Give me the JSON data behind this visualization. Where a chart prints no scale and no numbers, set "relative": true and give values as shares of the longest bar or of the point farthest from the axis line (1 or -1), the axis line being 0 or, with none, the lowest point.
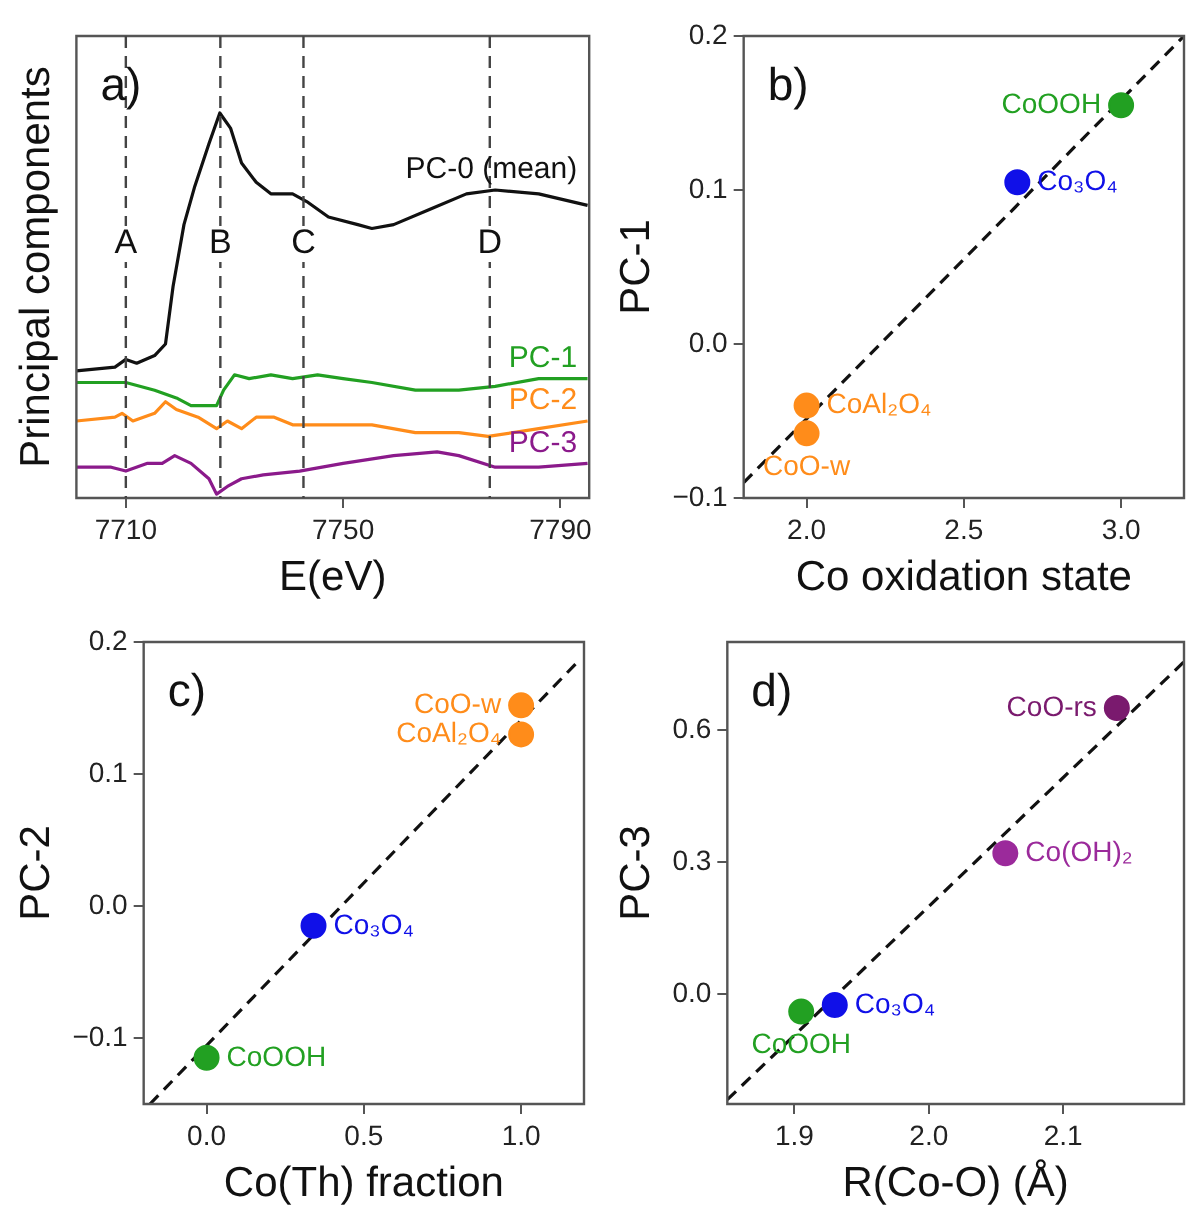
{
  "chart_data": [
    {
      "type": "line",
      "relative": true,
      "xlabel": "E(eV)",
      "ylabel": "Principal components",
      "tick_labels": "x",
      "annotations": [
        "a)"
      ],
      "xlim": [
        7700.9,
        7795.3
      ],
      "xticks": [
        7710,
        7750,
        7790
      ],
      "series": [
        {
          "name": "PC-0 (mean)",
          "color": "#111111",
          "x": [
            7700.9,
            7708,
            7710,
            7712,
            7715.3,
            7717.3,
            7718.7,
            7720.7,
            7722.7,
            7725.3,
            7727.3,
            7729.3,
            7731.3,
            7734,
            7736.7,
            7740.7,
            7743.3,
            7747.3,
            7752.7,
            7755.3,
            7759.3,
            7766,
            7772.7,
            7778,
            7786,
            7795
          ],
          "values": [
            0.33,
            0.34,
            0.36,
            0.35,
            0.37,
            0.4,
            0.55,
            0.71,
            0.81,
            0.92,
            1,
            0.96,
            0.87,
            0.82,
            0.79,
            0.79,
            0.77,
            0.73,
            0.71,
            0.7,
            0.71,
            0.75,
            0.79,
            0.8,
            0.79,
            0.76
          ]
        },
        {
          "name": "PC-1",
          "color": "#22a022",
          "x": [
            7700.9,
            7710,
            7715.3,
            7719.3,
            7722,
            7724.7,
            7726.7,
            7728,
            7730,
            7732.7,
            7736.7,
            7740.7,
            7745.3,
            7750,
            7755.3,
            7763.3,
            7771.3,
            7778,
            7786,
            7795
          ],
          "values": [
            0.3,
            0.3,
            0.28,
            0.26,
            0.24,
            0.24,
            0.24,
            0.28,
            0.32,
            0.31,
            0.32,
            0.31,
            0.32,
            0.31,
            0.3,
            0.28,
            0.28,
            0.29,
            0.31,
            0.31
          ]
        },
        {
          "name": "PC-2",
          "color": "#ff8c1a",
          "x": [
            7700.9,
            7708,
            7709.3,
            7711.3,
            7715.3,
            7717.3,
            7719.3,
            7723.3,
            7726.7,
            7728.7,
            7731.3,
            7734,
            7737.3,
            7740.7,
            7747.3,
            7755.3,
            7763.3,
            7771.3,
            7776.7,
            7786,
            7795
          ],
          "values": [
            0.2,
            0.21,
            0.22,
            0.2,
            0.22,
            0.25,
            0.23,
            0.21,
            0.18,
            0.2,
            0.18,
            0.21,
            0.21,
            0.19,
            0.19,
            0.19,
            0.17,
            0.17,
            0.16,
            0.18,
            0.2
          ]
        },
        {
          "name": "PC-3",
          "color": "#8b1a8b",
          "x": [
            7700.9,
            7707.3,
            7710,
            7714,
            7716.7,
            7719,
            7722,
            7725.3,
            7726.7,
            7728.7,
            7731.3,
            7735.3,
            7742,
            7750,
            7759.3,
            7767.3,
            7771.3,
            7778,
            7786,
            7795
          ],
          "values": [
            0.08,
            0.08,
            0.07,
            0.09,
            0.09,
            0.11,
            0.09,
            0.05,
            0.01,
            0.03,
            0.05,
            0.06,
            0.07,
            0.09,
            0.11,
            0.12,
            0.11,
            0.08,
            0.08,
            0.09
          ]
        }
      ],
      "ref_lines": [
        {
          "axis": "x",
          "value": 7710,
          "label": "A",
          "color": "#444444",
          "line_style": "dashed"
        },
        {
          "axis": "x",
          "value": 7727.4,
          "label": "B",
          "color": "#444444",
          "line_style": "dashed"
        },
        {
          "axis": "x",
          "value": 7742.7,
          "label": "C",
          "color": "#444444",
          "line_style": "dashed"
        },
        {
          "axis": "x",
          "value": 7777,
          "label": "D",
          "color": "#444444",
          "line_style": "dashed"
        }
      ]
    },
    {
      "type": "scatter",
      "marker": "circle",
      "xlabel": "Co oxidation state",
      "ylabel": "PC-1",
      "annotations": [
        "b)"
      ],
      "xlim": [
        1.8,
        3.2
      ],
      "xticks": [
        {
          "value": 2,
          "label": "2.0"
        },
        {
          "value": 2.5,
          "label": "2.5"
        },
        {
          "value": 3,
          "label": "3.0"
        }
      ],
      "ylim": [
        -0.1,
        0.2
      ],
      "yticks": [
        {
          "value": -0.1,
          "label": "−0.1"
        },
        {
          "value": 0,
          "label": "0.0"
        },
        {
          "value": 0.1,
          "label": "0.1"
        },
        {
          "value": 0.2,
          "label": "0.2"
        }
      ],
      "series": [
        {
          "name": "CoOOH",
          "color": "#22a022",
          "x": [
            3
          ],
          "values": [
            0.155
          ]
        },
        {
          "name": "Co₃O₄",
          "color": "#1010e8",
          "x": [
            2.67
          ],
          "values": [
            0.105
          ]
        },
        {
          "name": "CoAl₂O₄",
          "color": "#ff8c1a",
          "x": [
            2
          ],
          "values": [
            -0.04
          ]
        },
        {
          "name": "CoO-w",
          "color": "#ff8c1a",
          "x": [
            2
          ],
          "values": [
            -0.058
          ]
        },
        {
          "type": "line",
          "color": "#111111",
          "line_style": "dashed",
          "marker": "none",
          "x": [
            1.8,
            3.2
          ],
          "values": [
            -0.09,
            0.2
          ]
        }
      ]
    },
    {
      "type": "scatter",
      "marker": "circle",
      "xlabel": "Co(Th) fraction",
      "ylabel": "PC-2",
      "annotations": [
        "c)"
      ],
      "xlim": [
        -0.2,
        1.2
      ],
      "xticks": [
        {
          "value": 0,
          "label": "0.0"
        },
        {
          "value": 0.5,
          "label": "0.5"
        },
        {
          "value": 1,
          "label": "1.0"
        }
      ],
      "ylim": [
        -0.15,
        0.2
      ],
      "yticks": [
        {
          "value": -0.1,
          "label": "−0.1"
        },
        {
          "value": 0,
          "label": "0.0"
        },
        {
          "value": 0.1,
          "label": "0.1"
        },
        {
          "value": 0.2,
          "label": "0.2"
        }
      ],
      "series": [
        {
          "name": "CoO-w",
          "color": "#ff8c1a",
          "x": [
            1
          ],
          "values": [
            0.152
          ]
        },
        {
          "name": "CoAl₂O₄",
          "color": "#ff8c1a",
          "x": [
            1
          ],
          "values": [
            0.13
          ]
        },
        {
          "name": "Co₃O₄",
          "color": "#1010e8",
          "x": [
            0.34
          ],
          "values": [
            -0.015
          ]
        },
        {
          "name": "CoOOH",
          "color": "#22a022",
          "x": [
            0
          ],
          "values": [
            -0.115
          ]
        },
        {
          "type": "line",
          "color": "#111111",
          "line_style": "dashed",
          "marker": "none",
          "x": [
            -0.18,
            1.18
          ],
          "values": [
            -0.15,
            0.185
          ]
        }
      ]
    },
    {
      "type": "scatter",
      "marker": "circle",
      "xlabel": "R(Co-O) (Å)",
      "ylabel": "PC-3",
      "annotations": [
        "d)"
      ],
      "xlim": [
        1.85,
        2.19
      ],
      "xticks": [
        1.9,
        {
          "value": 2,
          "label": "2.0"
        },
        2.1
      ],
      "ylim": [
        -0.25,
        0.8
      ],
      "yticks": [
        {
          "value": 0,
          "label": "0.0"
        },
        0.3,
        0.6
      ],
      "series": [
        {
          "name": "CoO-rs",
          "color": "#7a1a6e",
          "x": [
            2.14
          ],
          "values": [
            0.65
          ]
        },
        {
          "name": "Co(OH)₂",
          "color": "#9b2a9b",
          "x": [
            2.057
          ],
          "values": [
            0.32
          ]
        },
        {
          "name": "Co₃O₄",
          "color": "#1010e8",
          "x": [
            1.93
          ],
          "values": [
            -0.025
          ]
        },
        {
          "name": "CoOOH",
          "color": "#22a022",
          "x": [
            1.905
          ],
          "values": [
            -0.04
          ]
        },
        {
          "type": "line",
          "color": "#111111",
          "line_style": "dashed",
          "marker": "none",
          "x": [
            1.85,
            2.19
          ],
          "values": [
            -0.24,
            0.755
          ]
        }
      ]
    }
  ]
}
